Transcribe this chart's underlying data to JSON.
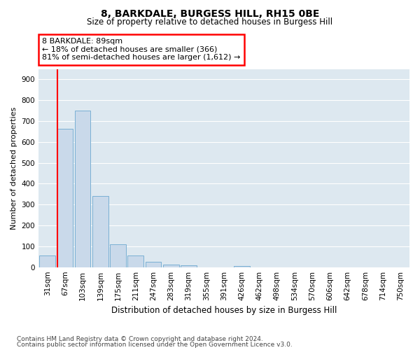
{
  "title_line1": "8, BARKDALE, BURGESS HILL, RH15 0BE",
  "title_line2": "Size of property relative to detached houses in Burgess Hill",
  "xlabel": "Distribution of detached houses by size in Burgess Hill",
  "ylabel": "Number of detached properties",
  "bar_color": "#c9d9ea",
  "bar_edge_color": "#7ab0d4",
  "background_color": "#dde8f0",
  "bin_labels": [
    "31sqm",
    "67sqm",
    "103sqm",
    "139sqm",
    "175sqm",
    "211sqm",
    "247sqm",
    "283sqm",
    "319sqm",
    "355sqm",
    "391sqm",
    "426sqm",
    "462sqm",
    "498sqm",
    "534sqm",
    "570sqm",
    "606sqm",
    "642sqm",
    "678sqm",
    "714sqm",
    "750sqm"
  ],
  "bar_heights": [
    57,
    665,
    750,
    340,
    108,
    55,
    25,
    13,
    10,
    0,
    0,
    7,
    0,
    0,
    0,
    0,
    0,
    0,
    0,
    0,
    0
  ],
  "red_line_bin_index": 1,
  "property_sqm": 89,
  "pct_smaller": 18,
  "n_smaller": 366,
  "pct_semi_larger": 81,
  "n_semi_larger": 1612,
  "ylim": [
    0,
    950
  ],
  "yticks": [
    0,
    100,
    200,
    300,
    400,
    500,
    600,
    700,
    800,
    900
  ],
  "footnote_line1": "Contains HM Land Registry data © Crown copyright and database right 2024.",
  "footnote_line2": "Contains public sector information licensed under the Open Government Licence v3.0.",
  "title_fontsize": 10,
  "subtitle_fontsize": 8.5,
  "ylabel_fontsize": 8,
  "xlabel_fontsize": 8.5,
  "tick_fontsize": 7.5,
  "ann_fontsize": 8,
  "footnote_fontsize": 6.5
}
